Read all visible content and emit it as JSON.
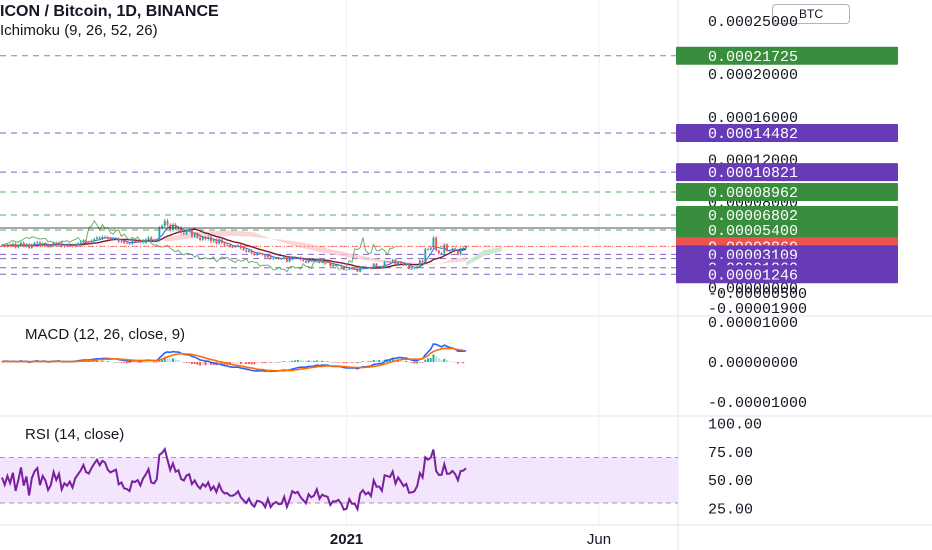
{
  "header": {
    "symbol_title": "ICON / Bitcoin, 1D, BINANCE",
    "ichimoku_label": "Ichimoku (9, 26, 52, 26)",
    "currency_badge": "BTC"
  },
  "colors": {
    "green_tag": "#388e3c",
    "purple_tag": "#673ab7",
    "red_tag": "#ef5350",
    "macd_line": "#2962ff",
    "signal_line": "#ff6d00",
    "rsi_line": "#7b1fa2",
    "rsi_band": "#f3e5fb",
    "candle_up": "#26a69a",
    "candle_down": "#ef5350",
    "kumo_bear": "#f8c7c7",
    "kumo_bull": "#c8e6c9"
  },
  "chart_data": [
    {
      "type": "line",
      "pane": "price",
      "series_note": "candlestick",
      "x_tick_labels": [
        "2021",
        "Jun"
      ],
      "y_tick_labels": [
        "0.00025000",
        "0.00020000",
        "0.00016000",
        "0.00012000",
        "0.00008000",
        "0.00004000",
        "0.00000000",
        "-0.00000500",
        "-0.00001900"
      ],
      "ylim": [
        -2.1e-05,
        0.000262
      ],
      "price_tags": [
        {
          "value": "0.00021725",
          "color": "green"
        },
        {
          "value": "0.00014482",
          "color": "purple"
        },
        {
          "value": "0.00010821",
          "color": "purple"
        },
        {
          "value": "0.00008962",
          "color": "green"
        },
        {
          "value": "0.00006802",
          "color": "green"
        },
        {
          "value": "0.00005400",
          "color": "green"
        },
        {
          "value": "0.00003860",
          "color": "red"
        },
        {
          "value": "0.00002716",
          "color": "purple"
        },
        {
          "value": "0.00003109",
          "color": "purple"
        },
        {
          "value": "0.00001862",
          "color": "purple"
        },
        {
          "value": "0.00001246",
          "color": "purple"
        }
      ],
      "closes": [
        3.98e-05,
        3.87e-05,
        4.02e-05,
        3.91e-05,
        4.11e-05,
        3.77e-05,
        3.95e-05,
        4.21e-05,
        3.88e-05,
        4.06e-05,
        3.71e-05,
        4.02e-05,
        4.18e-05,
        4.26e-05,
        3.91e-05,
        4.12e-05,
        4.03e-05,
        3.82e-05,
        3.91e-05,
        4.2e-05,
        4.05e-05,
        4.21e-05,
        3.85e-05,
        3.97e-05,
        3.92e-05,
        4e-05,
        3.88e-05,
        4.07e-05,
        4.15e-05,
        4.25e-05,
        4.41e-05,
        4.28e-05,
        4.25e-05,
        4.4e-05,
        4.55e-05,
        4.69e-05,
        4.59e-05,
        4.75e-05,
        4.72e-05,
        4.6e-05,
        4.55e-05,
        4.58e-05,
        4.61e-05,
        4.3e-05,
        4.34e-05,
        4.18e-05,
        4.17e-05,
        4.11e-05,
        4.35e-05,
        4.33e-05,
        4.38e-05,
        4.24e-05,
        4.41e-05,
        4.52e-05,
        4.69e-05,
        4.37e-05,
        4.34e-05,
        4.44e-05,
        5.6e-05,
        5.77e-05,
        6.26e-05,
        5.87e-05,
        5.41e-05,
        5.9e-05,
        5.52e-05,
        5.61e-05,
        5.13e-05,
        5.03e-05,
        5.33e-05,
        5.4e-05,
        4.8e-05,
        5.01e-05,
        4.69e-05,
        4.47e-05,
        4.7e-05,
        4.54e-05,
        4.75e-05,
        4.33e-05,
        4.48e-05,
        4.14e-05,
        4.53e-05,
        4.17e-05,
        3.98e-05,
        3.99e-05,
        3.82e-05,
        3.8e-05,
        3.86e-05,
        3.97e-05,
        3.68e-05,
        3.51e-05,
        3.35e-05,
        3.49e-05,
        3.2e-05,
        3.06e-05,
        3.21e-05,
        3.18e-05,
        3.09e-05,
        2.85e-05,
        3.03e-05,
        2.67e-05,
        2.75e-05,
        2.79e-05,
        2.69e-05,
        2.7e-05,
        2.88e-05,
        2.42e-05,
        2.62e-05,
        2.88e-05,
        2.8e-05,
        2.84e-05,
        2.61e-05,
        2.49e-05,
        2.34e-05,
        2.62e-05,
        2.48e-05,
        2.53e-05,
        2.71e-05,
        2.33e-05,
        2.46e-05,
        2.39e-05,
        2.37e-05,
        1.99e-05,
        2.09e-05,
        2.08e-05,
        2.12e-05,
        1.96e-05,
        1.66e-05,
        1.68e-05,
        1.9e-05,
        1.72e-05,
        1.72e-05,
        1.48e-05,
        1.9e-05,
        2e-05,
        1.83e-05,
        1.89e-05,
        1.74e-05,
        2.24e-05,
        1.98e-05,
        1.99e-05,
        1.81e-05,
        2.44e-05,
        2.41e-05,
        2.38e-05,
        2.62e-05,
        2.18e-05,
        2.44e-05,
        2.26e-05,
        2.07e-05,
        2.16e-05,
        1.74e-05,
        1.75e-05,
        1.79e-05,
        1.98e-05,
        2.55e-05,
        2.36e-05,
        3.63e-05,
        3.56e-05,
        3.75e-05,
        4.68e-05,
        3.47e-05,
        3.21e-05,
        3.23e-05,
        4.04e-05,
        3.45e-05,
        3.46e-05,
        3.65e-05,
        3.48e-05,
        3.09e-05,
        3.66e-05,
        3.7e-05,
        3.86e-05
      ]
    },
    {
      "type": "line",
      "pane": "MACD",
      "y_tick_labels": [
        "0.00001000",
        "0.00000000",
        "-0.00001000"
      ],
      "ylim": [
        -1.25e-05,
        1.05e-05
      ],
      "series": [
        {
          "name": "MACD (12, 26, close, 9)",
          "values": [
            1e-07,
            2e-07,
            2e-07,
            1e-07,
            2e-07,
            1e-07,
            1e-07,
            3e-07,
            1e-07,
            2e-07,
            -1e-07,
            1e-07,
            2e-07,
            3e-07,
            1e-07,
            2e-07,
            2e-07,
            0.0,
            1e-07,
            2e-07,
            2e-07,
            3e-07,
            1e-07,
            1e-07,
            1e-07,
            1e-07,
            1e-07,
            2e-07,
            3e-07,
            4e-07,
            5e-07,
            5e-07,
            5e-07,
            6e-07,
            7e-07,
            8e-07,
            8e-07,
            9e-07,
            9e-07,
            9e-07,
            8e-07,
            8e-07,
            8e-07,
            6e-07,
            5e-07,
            4e-07,
            3e-07,
            2e-07,
            3e-07,
            3e-07,
            3e-07,
            2e-07,
            3e-07,
            4e-07,
            5e-07,
            4e-07,
            3e-07,
            3e-07,
            1e-06,
            1.6e-06,
            2.3e-06,
            2.5e-06,
            2.4e-06,
            2.6e-06,
            2.5e-06,
            2.5e-06,
            2.2e-06,
            1.9e-06,
            1.8e-06,
            1.8e-06,
            1.4e-06,
            1.2e-06,
            9e-07,
            5e-07,
            4e-07,
            2e-07,
            2e-07,
            -1e-07,
            -2e-07,
            -5e-07,
            -5e-07,
            -7e-07,
            -9e-07,
            -1e-06,
            -1.2e-06,
            -1.3e-06,
            -1.3e-06,
            -1.3e-06,
            -1.5e-06,
            -1.6e-06,
            -1.8e-06,
            -1.9e-06,
            -2.1e-06,
            -2.2e-06,
            -2.2e-06,
            -2.2e-06,
            -2.2e-06,
            -2.3e-06,
            -2.2e-06,
            -2.3e-06,
            -2.3e-06,
            -2.3e-06,
            -2.2e-06,
            -2.1e-06,
            -2e-06,
            -2.1e-06,
            -2e-06,
            -1.8e-06,
            -1.6e-06,
            -1.4e-06,
            -1.3e-06,
            -1.3e-06,
            -1.3e-06,
            -1.1e-06,
            -1.1e-06,
            -1e-06,
            -8e-07,
            -9e-07,
            -8e-07,
            -8e-07,
            -8e-07,
            -1e-06,
            -1.1e-06,
            -1.1e-06,
            -1.1e-06,
            -1.2e-06,
            -1.4e-06,
            -1.5e-06,
            -1.5e-06,
            -1.5e-06,
            -1.5e-06,
            -1.7e-06,
            -1.4e-06,
            -1.2e-06,
            -1.2e-06,
            -1.1e-06,
            -1e-06,
            -6e-07,
            -5e-07,
            -4e-07,
            -4e-07,
            1e-07,
            4e-07,
            6e-07,
            9e-07,
            9e-07,
            1.1e-06,
            1.1e-06,
            1e-06,
            1e-06,
            7e-07,
            5e-07,
            3e-07,
            3e-07,
            7e-07,
            8e-07,
            1.8e-06,
            2.5e-06,
            3.2e-06,
            4.5e-06,
            4.4e-06,
            4.1e-06,
            3.8e-06,
            4.2e-06,
            3.9e-06,
            3.6e-06,
            3.5e-06,
            3.2e-06,
            2.7e-06,
            2.7e-06,
            2.7e-06,
            2.8e-06
          ]
        },
        {
          "name": "Signal",
          "values": [
            0.0,
            1e-07,
            1e-07,
            1e-07,
            1e-07,
            1e-07,
            1e-07,
            1e-07,
            1e-07,
            1e-07,
            1e-07,
            1e-07,
            1e-07,
            1e-07,
            1e-07,
            1e-07,
            1e-07,
            1e-07,
            1e-07,
            1e-07,
            1e-07,
            2e-07,
            1e-07,
            1e-07,
            1e-07,
            1e-07,
            1e-07,
            1e-07,
            2e-07,
            2e-07,
            3e-07,
            3e-07,
            3e-07,
            4e-07,
            4e-07,
            5e-07,
            6e-07,
            6e-07,
            7e-07,
            7e-07,
            7e-07,
            8e-07,
            8e-07,
            7e-07,
            7e-07,
            6e-07,
            6e-07,
            5e-07,
            5e-07,
            4e-07,
            4e-07,
            4e-07,
            4e-07,
            4e-07,
            4e-07,
            4e-07,
            4e-07,
            4e-07,
            5e-07,
            7e-07,
            1e-06,
            1.3e-06,
            1.5e-06,
            1.7e-06,
            1.9e-06,
            2e-06,
            2.1e-06,
            2e-06,
            2e-06,
            2e-06,
            1.9e-06,
            1.7e-06,
            1.6e-06,
            1.4e-06,
            1.2e-06,
            1e-06,
            8e-07,
            6e-07,
            5e-07,
            3e-07,
            1e-07,
            0.0,
            -2e-07,
            -3e-07,
            -5e-07,
            -7e-07,
            -8e-07,
            -9e-07,
            -1e-06,
            -1.1e-06,
            -1.3e-06,
            -1.4e-06,
            -1.5e-06,
            -1.6e-06,
            -1.8e-06,
            -1.9e-06,
            -1.9e-06,
            -2e-06,
            -2.1e-06,
            -2.1e-06,
            -2.2e-06,
            -2.2e-06,
            -2.2e-06,
            -2.2e-06,
            -2.2e-06,
            -2.1e-06,
            -2.1e-06,
            -2.1e-06,
            -2e-06,
            -1.9e-06,
            -1.8e-06,
            -1.7e-06,
            -1.6e-06,
            -1.5e-06,
            -1.4e-06,
            -1.3e-06,
            -1.2e-06,
            -1.1e-06,
            -1.1e-06,
            -1e-06,
            -1e-06,
            -1e-06,
            -1e-06,
            -1e-06,
            -1e-06,
            -1.1e-06,
            -1.1e-06,
            -1.2e-06,
            -1.3e-06,
            -1.3e-06,
            -1.4e-06,
            -1.4e-06,
            -1.4e-06,
            -1.4e-06,
            -1.3e-06,
            -1.3e-06,
            -1.2e-06,
            -1.1e-06,
            -1e-06,
            -9e-07,
            -7e-07,
            -5e-07,
            -3e-07,
            -1e-07,
            1e-07,
            3e-07,
            4e-07,
            6e-07,
            7e-07,
            7e-07,
            7e-07,
            7e-07,
            7e-07,
            7e-07,
            7e-07,
            9e-07,
            1.2e-06,
            1.6e-06,
            2.2e-06,
            2.6e-06,
            2.9e-06,
            3.1e-06,
            3.3e-06,
            3.4e-06,
            3.4e-06,
            3.4e-06,
            3.4e-06,
            3.2e-06,
            3.1e-06,
            3e-06,
            3e-06
          ]
        }
      ]
    },
    {
      "type": "line",
      "pane": "RSI",
      "y_tick_labels": [
        "100.00",
        "75.00",
        "50.00",
        "25.00"
      ],
      "ylim": [
        15,
        103
      ],
      "band": [
        30,
        70
      ],
      "series": [
        {
          "name": "RSI (14, close)",
          "values": [
            52.4,
            46.0,
            53.8,
            47.5,
            56.5,
            40.6,
            49.9,
            61.3,
            45.3,
            53.3,
            36.6,
            51.8,
            57.9,
            60.6,
            45.6,
            53.7,
            49.8,
            41.4,
            45.6,
            57.2,
            50.2,
            55.7,
            41.9,
            47.3,
            45.2,
            48.8,
            43.6,
            51.9,
            55.1,
            58.6,
            63.4,
            57.1,
            55.9,
            60.7,
            64.7,
            68.0,
            63.1,
            67.1,
            65.5,
            59.2,
            56.9,
            58.2,
            59.3,
            46.4,
            48.0,
            42.9,
            42.3,
            40.4,
            49.1,
            48.4,
            50.1,
            45.4,
            51.6,
            55.1,
            59.8,
            48.1,
            47.2,
            50.7,
            72.4,
            74.0,
            77.4,
            67.9,
            58.9,
            64.8,
            57.5,
            58.8,
            51.2,
            49.8,
            54.2,
            55.2,
            46.6,
            49.8,
            45.4,
            42.6,
            46.7,
            44.4,
            48.1,
            41.5,
            44.6,
            39.6,
            46.5,
            40.9,
            38.4,
            38.7,
            36.4,
            36.3,
            37.7,
            40.3,
            35.0,
            32.3,
            29.9,
            33.9,
            28.9,
            26.8,
            31.9,
            31.4,
            30.0,
            26.3,
            33.6,
            26.3,
            29.3,
            30.8,
            28.9,
            29.3,
            35.4,
            26.5,
            32.9,
            40.4,
            38.7,
            39.7,
            35.1,
            32.6,
            29.7,
            37.7,
            35.0,
            36.5,
            42.0,
            33.7,
            37.3,
            36.0,
            35.5,
            28.2,
            31.5,
            31.4,
            32.7,
            29.4,
            24.1,
            25.0,
            33.3,
            29.3,
            29.3,
            24.6,
            38.4,
            41.2,
            37.6,
            39.3,
            36.1,
            49.9,
            44.3,
            44.5,
            40.7,
            54.3,
            53.6,
            52.9,
            57.7,
            47.1,
            52.4,
            48.7,
            44.8,
            46.8,
            39.0,
            39.3,
            40.3,
            45.0,
            56.3,
            52.4,
            70.2,
            68.1,
            69.7,
            77.0,
            58.0,
            54.6,
            54.8,
            64.1,
            55.7,
            55.8,
            58.2,
            55.6,
            50.0,
            58.0,
            58.5,
            60.6
          ]
        }
      ]
    }
  ]
}
